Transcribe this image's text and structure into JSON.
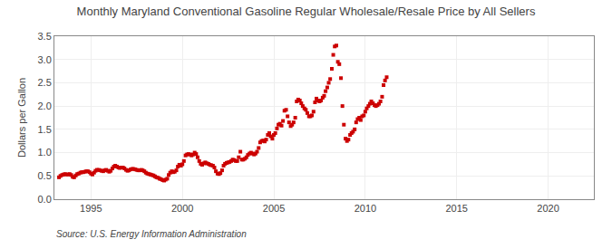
{
  "chart_data": {
    "type": "scatter",
    "title": "Monthly Maryland Conventional Gasoline Regular Wholesale/Resale Price by All Sellers",
    "ylabel": "Dollars per Gallon",
    "annotations": [
      "Source: U.S. Energy Information Administration"
    ],
    "color": "#CC0000",
    "marker": "square",
    "grid": true,
    "xlim": [
      1993.0,
      2022.5
    ],
    "ylim": [
      0.0,
      3.5
    ],
    "xticks": [
      1995,
      2000,
      2005,
      2010,
      2015,
      2020
    ],
    "yticks": [
      {
        "value": 0.0,
        "label": "0.0"
      },
      0.5,
      {
        "value": 1.0,
        "label": "1.0"
      },
      1.5,
      {
        "value": 2.0,
        "label": "2.0"
      },
      2.5,
      {
        "value": 3.0,
        "label": "3.0"
      },
      3.5
    ],
    "x": [
      1993.25,
      1993.33,
      1993.42,
      1993.5,
      1993.58,
      1993.67,
      1993.75,
      1993.83,
      1993.92,
      1994.0,
      1994.08,
      1994.17,
      1994.25,
      1994.33,
      1994.42,
      1994.5,
      1994.58,
      1994.67,
      1994.75,
      1994.83,
      1994.92,
      1995.0,
      1995.08,
      1995.17,
      1995.25,
      1995.33,
      1995.42,
      1995.5,
      1995.58,
      1995.67,
      1995.75,
      1995.83,
      1995.92,
      1996.0,
      1996.08,
      1996.17,
      1996.25,
      1996.33,
      1996.42,
      1996.5,
      1996.58,
      1996.67,
      1996.75,
      1996.83,
      1996.92,
      1997.0,
      1997.08,
      1997.17,
      1997.25,
      1997.33,
      1997.42,
      1997.5,
      1997.58,
      1997.67,
      1997.75,
      1997.83,
      1997.92,
      1998.0,
      1998.08,
      1998.17,
      1998.25,
      1998.33,
      1998.42,
      1998.5,
      1998.58,
      1998.67,
      1998.75,
      1998.83,
      1998.92,
      1999.0,
      1999.08,
      1999.17,
      1999.25,
      1999.33,
      1999.42,
      1999.5,
      1999.58,
      1999.67,
      1999.75,
      1999.83,
      1999.92,
      2000.0,
      2000.08,
      2000.17,
      2000.25,
      2000.33,
      2000.42,
      2000.5,
      2000.58,
      2000.67,
      2000.75,
      2000.83,
      2000.92,
      2001.0,
      2001.08,
      2001.17,
      2001.25,
      2001.33,
      2001.42,
      2001.5,
      2001.58,
      2001.67,
      2001.75,
      2001.83,
      2001.92,
      2002.0,
      2002.08,
      2002.17,
      2002.25,
      2002.33,
      2002.42,
      2002.5,
      2002.58,
      2002.67,
      2002.75,
      2002.83,
      2002.92,
      2003.0,
      2003.08,
      2003.17,
      2003.25,
      2003.33,
      2003.42,
      2003.5,
      2003.58,
      2003.67,
      2003.75,
      2003.83,
      2003.92,
      2004.0,
      2004.08,
      2004.17,
      2004.25,
      2004.33,
      2004.42,
      2004.5,
      2004.58,
      2004.67,
      2004.75,
      2004.83,
      2004.92,
      2005.0,
      2005.08,
      2005.17,
      2005.25,
      2005.33,
      2005.42,
      2005.5,
      2005.58,
      2005.67,
      2005.75,
      2005.83,
      2005.92,
      2006.0,
      2006.08,
      2006.17,
      2006.25,
      2006.33,
      2006.42,
      2006.5,
      2006.58,
      2006.67,
      2006.75,
      2006.83,
      2006.92,
      2007.0,
      2007.08,
      2007.17,
      2007.25,
      2007.33,
      2007.42,
      2007.5,
      2007.58,
      2007.67,
      2007.75,
      2007.83,
      2007.92,
      2008.0,
      2008.08,
      2008.17,
      2008.25,
      2008.33,
      2008.42,
      2008.5,
      2008.58,
      2008.67,
      2008.75,
      2008.83,
      2008.92,
      2009.0,
      2009.08,
      2009.17,
      2009.25,
      2009.33,
      2009.42,
      2009.5,
      2009.58,
      2009.67,
      2009.75,
      2009.83,
      2009.92,
      2010.0,
      2010.08,
      2010.17,
      2010.25,
      2010.33,
      2010.42,
      2010.5,
      2010.58,
      2010.67,
      2010.75,
      2010.83,
      2010.92,
      2011.0,
      2011.08,
      2011.17
    ],
    "values": [
      0.47,
      0.5,
      0.52,
      0.53,
      0.54,
      0.53,
      0.53,
      0.54,
      0.52,
      0.48,
      0.47,
      0.51,
      0.54,
      0.55,
      0.57,
      0.58,
      0.58,
      0.59,
      0.6,
      0.6,
      0.58,
      0.55,
      0.53,
      0.57,
      0.61,
      0.63,
      0.63,
      0.62,
      0.61,
      0.6,
      0.62,
      0.63,
      0.61,
      0.59,
      0.61,
      0.66,
      0.7,
      0.72,
      0.7,
      0.68,
      0.67,
      0.68,
      0.68,
      0.66,
      0.63,
      0.61,
      0.62,
      0.64,
      0.65,
      0.65,
      0.64,
      0.63,
      0.62,
      0.62,
      0.63,
      0.62,
      0.6,
      0.57,
      0.55,
      0.54,
      0.53,
      0.52,
      0.51,
      0.49,
      0.47,
      0.46,
      0.44,
      0.43,
      0.41,
      0.4,
      0.42,
      0.44,
      0.52,
      0.57,
      0.6,
      0.58,
      0.59,
      0.62,
      0.7,
      0.74,
      0.72,
      0.75,
      0.82,
      0.94,
      0.96,
      0.97,
      0.96,
      0.94,
      0.96,
      1.0,
      0.97,
      0.9,
      0.82,
      0.76,
      0.74,
      0.77,
      0.79,
      0.77,
      0.76,
      0.74,
      0.73,
      0.72,
      0.68,
      0.6,
      0.55,
      0.54,
      0.56,
      0.62,
      0.72,
      0.76,
      0.78,
      0.79,
      0.8,
      0.82,
      0.85,
      0.84,
      0.82,
      0.82,
      0.9,
      1.02,
      0.85,
      0.85,
      0.87,
      0.9,
      0.95,
      0.98,
      1.0,
      0.98,
      0.96,
      0.98,
      1.02,
      1.1,
      1.22,
      1.25,
      1.26,
      1.24,
      1.28,
      1.38,
      1.42,
      1.35,
      1.3,
      1.38,
      1.42,
      1.52,
      1.6,
      1.62,
      1.58,
      1.68,
      1.9,
      1.92,
      1.78,
      1.65,
      1.57,
      1.6,
      1.65,
      1.75,
      2.1,
      2.14,
      2.12,
      2.06,
      2.0,
      1.95,
      1.92,
      1.85,
      1.78,
      1.78,
      1.8,
      1.88,
      2.08,
      2.16,
      2.12,
      2.1,
      2.12,
      2.18,
      2.22,
      2.32,
      2.4,
      2.5,
      2.58,
      2.8,
      3.1,
      3.28,
      3.3,
      2.95,
      2.9,
      2.6,
      2.0,
      1.6,
      1.3,
      1.25,
      1.28,
      1.38,
      1.42,
      1.45,
      1.5,
      1.65,
      1.72,
      1.75,
      1.7,
      1.78,
      1.8,
      1.88,
      1.95,
      2.0,
      2.05,
      2.1,
      2.06,
      2.02,
      2.0,
      2.02,
      2.05,
      2.1,
      2.2,
      2.45,
      2.55,
      2.62
    ]
  }
}
